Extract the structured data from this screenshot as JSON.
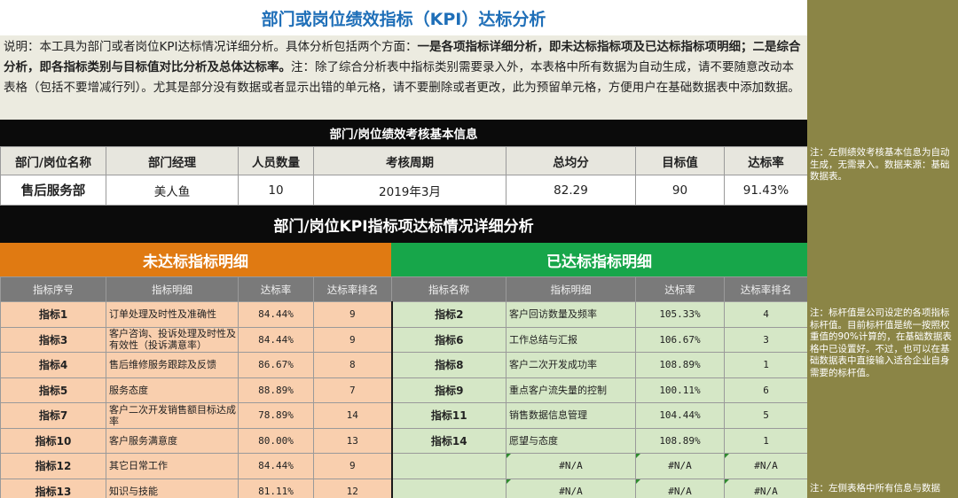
{
  "title": "部门或岗位绩效指标（KPI）达标分析",
  "description": {
    "p1": "说明：本工具为部门或者岗位KPI达标情况详细分析。具体分析包括两个方面：",
    "b1": "一是各项指标详细分析，即未达标指标项及已达标指标项明细；二是综合分析，即各指标类别与目标值对比分析及总体达标率。",
    "p2": "注：除了综合分析表中指标类别需要录入外，本表格中所有数据为自动生成，请不要随意改动本表格（包括不要增减行列）。尤其是部分没有数据或者显示出错的单元格，请不要删除或者更改，此为预留单元格，方便用户在基础数据表中添加数据。"
  },
  "basic_info": {
    "title": "部门/岗位绩效考核基本信息",
    "headers": [
      "部门/岗位名称",
      "部门经理",
      "人员数量",
      "考核周期",
      "总均分",
      "目标值",
      "达标率"
    ],
    "values": [
      "售后服务部",
      "美人鱼",
      "10",
      "2019年3月",
      "82.29",
      "90",
      "91.43%"
    ]
  },
  "detail_title": "部门/岗位KPI指标项达标情况详细分析",
  "unmet": {
    "title": "未达标指标明细",
    "headers": [
      "指标序号",
      "指标明细",
      "达标率",
      "达标率排名"
    ],
    "rows": [
      [
        "指标1",
        "订单处理及时性及准确性",
        "84.44%",
        "9"
      ],
      [
        "指标3",
        "客户咨询、投诉处理及时性及有效性（投诉满意率）",
        "84.44%",
        "9"
      ],
      [
        "指标4",
        "售后维修服务跟踪及反馈",
        "86.67%",
        "8"
      ],
      [
        "指标5",
        "服务态度",
        "88.89%",
        "7"
      ],
      [
        "指标7",
        "客户二次开发销售额目标达成率",
        "78.89%",
        "14"
      ],
      [
        "指标10",
        "客户服务满意度",
        "80.00%",
        "13"
      ],
      [
        "指标12",
        "其它日常工作",
        "84.44%",
        "9"
      ],
      [
        "指标13",
        "知识与技能",
        "81.11%",
        "12"
      ]
    ]
  },
  "met": {
    "title": "已达标指标明细",
    "headers": [
      "指标名称",
      "指标明细",
      "达标率",
      "达标率排名"
    ],
    "rows": [
      [
        "指标2",
        "客户回访数量及频率",
        "105.33%",
        "4"
      ],
      [
        "指标6",
        "工作总结与汇报",
        "106.67%",
        "3"
      ],
      [
        "指标8",
        "客户二次开发成功率",
        "108.89%",
        "1"
      ],
      [
        "指标9",
        "重点客户流失量的控制",
        "100.11%",
        "6"
      ],
      [
        "指标11",
        "销售数据信息管理",
        "104.44%",
        "5"
      ],
      [
        "指标14",
        "愿望与态度",
        "108.89%",
        "1"
      ],
      [
        "",
        "#N/A",
        "#N/A",
        "#N/A"
      ],
      [
        "",
        "#N/A",
        "#N/A",
        "#N/A"
      ]
    ]
  },
  "notes": [
    "注：左侧绩效考核基本信息为自动生成，无需录入。数据来源：基础数据表。",
    "注：标杆值是公司设定的各项指标标杆值。目前标杆值是统一按照权重值的90%计算的，在基础数据表格中已设置好。不过，也可以在基础数据表中直接输入适合企业自身需要的标杆值。",
    "注：左侧表格中所有信息与数据"
  ]
}
